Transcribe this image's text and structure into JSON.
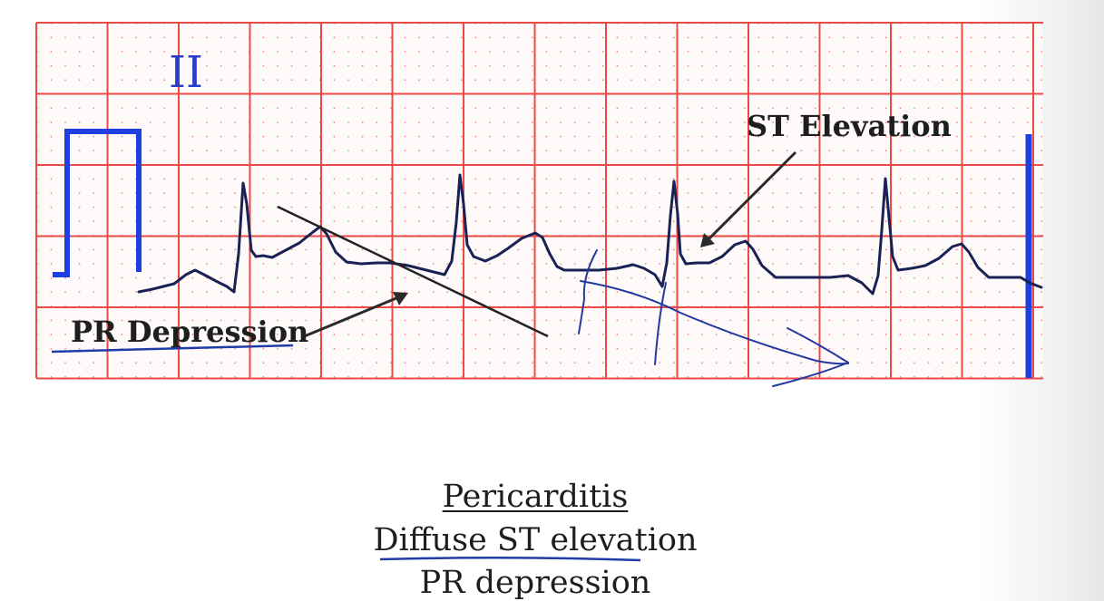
{
  "ecg": {
    "lead": "II",
    "annotations": {
      "st_elevation": "ST Elevation",
      "pr_depression": "PR Depression"
    }
  },
  "caption": {
    "title": "Pericarditis",
    "line2": "Diffuse ST elevation",
    "line3": "PR depression"
  },
  "colors": {
    "grid_major": "#ee4a45",
    "grid_minor": "#f08a86",
    "trace": "#1a2255",
    "calibration": "#1f3fe0",
    "pen_ink": "#223a9e",
    "text": "#1e1e1e"
  }
}
